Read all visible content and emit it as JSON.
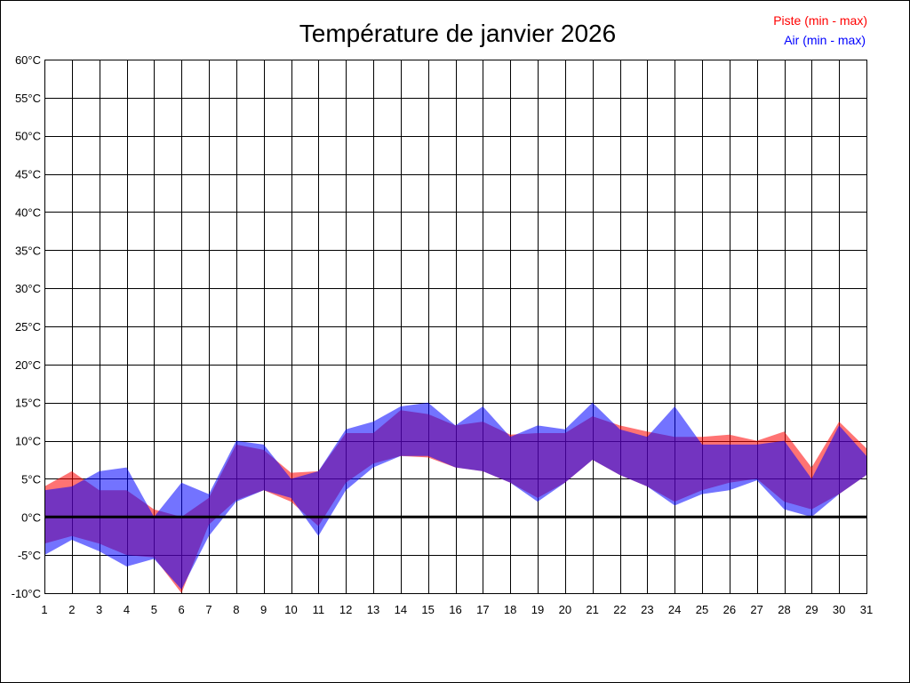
{
  "chart_data": {
    "type": "area",
    "title": "Température de janvier 2026",
    "xlabel": "",
    "ylabel": "",
    "x": [
      1,
      2,
      3,
      4,
      5,
      6,
      7,
      8,
      9,
      10,
      11,
      12,
      13,
      14,
      15,
      16,
      17,
      18,
      19,
      20,
      21,
      22,
      23,
      24,
      25,
      26,
      27,
      28,
      29,
      30,
      31
    ],
    "x_ticks": [
      "1",
      "2",
      "3",
      "4",
      "5",
      "6",
      "7",
      "8",
      "9",
      "10",
      "11",
      "12",
      "13",
      "14",
      "15",
      "16",
      "17",
      "18",
      "19",
      "20",
      "21",
      "22",
      "23",
      "24",
      "25",
      "26",
      "27",
      "28",
      "29",
      "30",
      "31"
    ],
    "xlim": [
      1,
      31
    ],
    "ylim": [
      -10,
      60
    ],
    "y_ticks": [
      -10,
      -5,
      0,
      5,
      10,
      15,
      20,
      25,
      30,
      35,
      40,
      45,
      50,
      55,
      60
    ],
    "y_tick_labels": [
      "-10°C",
      "-5°C",
      "0°C",
      "5°C",
      "10°C",
      "15°C",
      "20°C",
      "25°C",
      "30°C",
      "35°C",
      "40°C",
      "45°C",
      "50°C",
      "55°C",
      "60°C"
    ],
    "grid": true,
    "zero_line": true,
    "legend_position": "top-right",
    "series": [
      {
        "name": "Piste (min - max)",
        "color": "#ff0000",
        "fill_opacity": 0.55,
        "min": [
          -3.5,
          -2.5,
          -3.5,
          -5.0,
          -5.3,
          -10.0,
          -1.0,
          2.2,
          3.5,
          2.0,
          -1.2,
          4.5,
          7.0,
          8.0,
          7.8,
          6.5,
          6.0,
          4.5,
          2.5,
          4.5,
          7.5,
          5.5,
          4.0,
          2.0,
          3.5,
          4.5,
          5.0,
          2.0,
          1.0,
          3.0,
          5.5
        ],
        "max": [
          4.0,
          6.0,
          3.5,
          3.5,
          1.0,
          0.0,
          2.5,
          9.5,
          8.8,
          5.8,
          6.0,
          11.0,
          11.0,
          14.0,
          13.5,
          12.0,
          12.5,
          10.8,
          11.0,
          11.0,
          13.2,
          12.0,
          11.2,
          10.5,
          10.5,
          10.8,
          10.0,
          11.2,
          6.5,
          12.5,
          9.0
        ]
      },
      {
        "name": "Air (min - max)",
        "color": "#0000ff",
        "fill_opacity": 0.55,
        "min": [
          -5.0,
          -3.0,
          -4.5,
          -6.5,
          -5.5,
          -9.5,
          -2.5,
          2.0,
          3.5,
          2.5,
          -2.5,
          3.5,
          6.5,
          8.0,
          8.0,
          6.5,
          6.0,
          4.5,
          2.0,
          4.5,
          7.5,
          5.5,
          4.0,
          1.5,
          3.0,
          3.5,
          4.8,
          1.0,
          0.0,
          3.0,
          5.5
        ],
        "max": [
          3.5,
          4.0,
          6.0,
          6.5,
          0.0,
          4.5,
          3.0,
          10.0,
          9.5,
          5.0,
          6.0,
          11.5,
          12.5,
          14.5,
          15.0,
          12.0,
          14.5,
          10.5,
          12.0,
          11.5,
          15.0,
          11.5,
          10.5,
          14.5,
          9.5,
          9.5,
          9.5,
          10.0,
          5.0,
          12.0,
          8.0
        ]
      }
    ]
  }
}
